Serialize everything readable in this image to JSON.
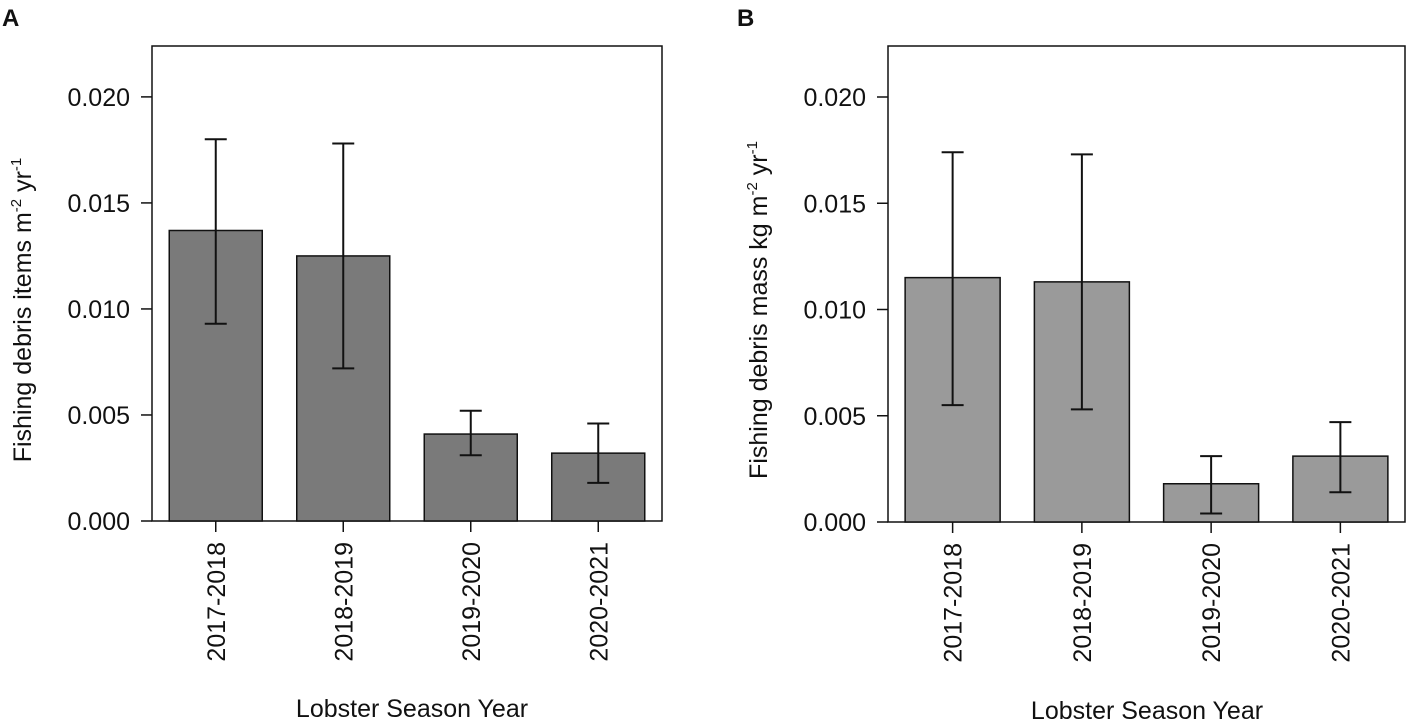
{
  "chart_data": [
    {
      "type": "bar",
      "panel": "A",
      "categories": [
        "2017-2018",
        "2018-2019",
        "2019-2020",
        "2020-2021"
      ],
      "values": [
        0.0137,
        0.0125,
        0.0041,
        0.0032
      ],
      "error_low": [
        0.0093,
        0.0072,
        0.0031,
        0.0018
      ],
      "error_high": [
        0.018,
        0.0178,
        0.0052,
        0.0046
      ],
      "ylim": [
        0,
        0.0224
      ],
      "yticks": [
        "0.000",
        "0.005",
        "0.010",
        "0.015",
        "0.020"
      ],
      "ytick_values": [
        0,
        0.005,
        0.01,
        0.015,
        0.02
      ],
      "xlabel": "Lobster Season Year",
      "ylabel_parts": [
        "Fishing debris items m",
        "-2",
        " yr",
        "-1"
      ],
      "bar_color": "#7a7a7a"
    },
    {
      "type": "bar",
      "panel": "B",
      "categories": [
        "2017-2018",
        "2018-2019",
        "2019-2020",
        "2020-2021"
      ],
      "values": [
        0.0115,
        0.0113,
        0.0018,
        0.0031
      ],
      "error_low": [
        0.0055,
        0.0053,
        0.0004,
        0.0014
      ],
      "error_high": [
        0.0174,
        0.0173,
        0.0031,
        0.0047
      ],
      "ylim": [
        0,
        0.0224
      ],
      "yticks": [
        "0.000",
        "0.005",
        "0.010",
        "0.015",
        "0.020"
      ],
      "ytick_values": [
        0,
        0.005,
        0.01,
        0.015,
        0.02
      ],
      "xlabel": "Lobster Season Year",
      "ylabel_parts": [
        "Fishing debris mass kg m",
        "-2",
        " yr",
        "-1"
      ],
      "bar_color": "#9a9a9a"
    }
  ]
}
